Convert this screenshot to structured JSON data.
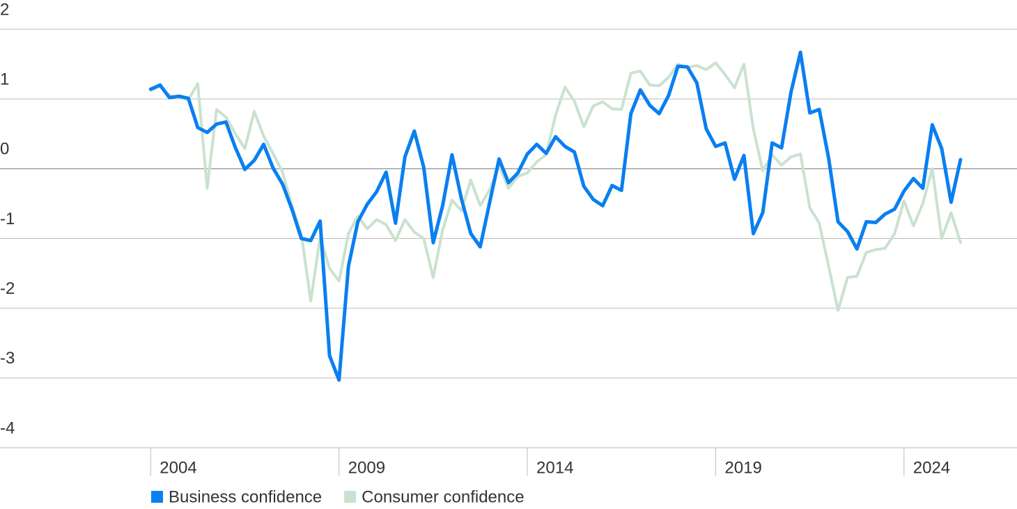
{
  "chart_data": {
    "type": "line",
    "x": [
      2004,
      2004.25,
      2004.5,
      2004.75,
      2005,
      2005.25,
      2005.5,
      2005.75,
      2006,
      2006.25,
      2006.5,
      2006.75,
      2007,
      2007.25,
      2007.5,
      2007.75,
      2008,
      2008.25,
      2008.5,
      2008.75,
      2009,
      2009.25,
      2009.5,
      2009.75,
      2010,
      2010.25,
      2010.5,
      2010.75,
      2011,
      2011.25,
      2011.5,
      2011.75,
      2012,
      2012.25,
      2012.5,
      2012.75,
      2013,
      2013.25,
      2013.5,
      2013.75,
      2014,
      2014.25,
      2014.5,
      2014.75,
      2015,
      2015.25,
      2015.5,
      2015.75,
      2016,
      2016.25,
      2016.5,
      2016.75,
      2017,
      2017.25,
      2017.5,
      2017.75,
      2018,
      2018.25,
      2018.5,
      2018.75,
      2019,
      2019.25,
      2019.5,
      2019.75,
      2020,
      2020.25,
      2020.5,
      2020.75,
      2021,
      2021.25,
      2021.5,
      2021.75,
      2022,
      2022.25,
      2022.5,
      2022.75,
      2023,
      2023.25,
      2023.5,
      2023.75,
      2024,
      2024.25,
      2024.5,
      2024.75,
      2025,
      2025.25,
      2025.5
    ],
    "series": [
      {
        "name": "Business confidence",
        "color": "#0a7ff0",
        "values": [
          1.14,
          1.2,
          1.02,
          1.04,
          1.01,
          0.59,
          0.52,
          0.64,
          0.67,
          0.3,
          -0.01,
          0.12,
          0.35,
          0.01,
          -0.22,
          -0.58,
          -1.0,
          -1.03,
          -0.75,
          -2.68,
          -3.03,
          -1.4,
          -0.76,
          -0.51,
          -0.33,
          -0.05,
          -0.78,
          0.17,
          0.54,
          0.02,
          -1.06,
          -0.53,
          0.2,
          -0.43,
          -0.93,
          -1.12,
          -0.48,
          0.14,
          -0.2,
          -0.06,
          0.21,
          0.35,
          0.22,
          0.46,
          0.32,
          0.24,
          -0.25,
          -0.44,
          -0.53,
          -0.24,
          -0.31,
          0.79,
          1.13,
          0.91,
          0.79,
          1.05,
          1.47,
          1.46,
          1.23,
          0.57,
          0.32,
          0.37,
          -0.15,
          0.19,
          -0.93,
          -0.63,
          0.37,
          0.3,
          1.1,
          1.67,
          0.8,
          0.85,
          0.15,
          -0.76,
          -0.9,
          -1.15,
          -0.76,
          -0.77,
          -0.65,
          -0.58,
          -0.32,
          -0.14,
          -0.28,
          0.63,
          0.29,
          -0.48,
          0.13
        ]
      },
      {
        "name": "Consumer confidence",
        "color": "#c9e2cf",
        "values": [
          1.12,
          1.18,
          1.05,
          1.03,
          0.99,
          1.22,
          -0.28,
          0.85,
          0.74,
          0.5,
          0.29,
          0.82,
          0.47,
          0.22,
          -0.05,
          -0.53,
          -0.93,
          -1.9,
          -0.98,
          -1.43,
          -1.61,
          -0.93,
          -0.68,
          -0.86,
          -0.73,
          -0.8,
          -1.03,
          -0.73,
          -0.91,
          -1.0,
          -1.56,
          -0.88,
          -0.45,
          -0.6,
          -0.16,
          -0.53,
          -0.3,
          0.05,
          -0.28,
          -0.11,
          -0.06,
          0.1,
          0.2,
          0.77,
          1.17,
          0.97,
          0.6,
          0.9,
          0.96,
          0.86,
          0.85,
          1.37,
          1.4,
          1.2,
          1.19,
          1.31,
          1.5,
          1.45,
          1.48,
          1.42,
          1.52,
          1.35,
          1.16,
          1.5,
          0.57,
          -0.03,
          0.2,
          0.05,
          0.17,
          0.21,
          -0.56,
          -0.78,
          -1.4,
          -2.03,
          -1.56,
          -1.54,
          -1.2,
          -1.16,
          -1.14,
          -0.93,
          -0.46,
          -0.82,
          -0.5,
          0.0,
          -1.0,
          -0.63,
          -1.06
        ]
      }
    ],
    "xlim": [
      2000,
      2027
    ],
    "xticks": [
      2004,
      2009,
      2014,
      2019,
      2024
    ],
    "ylim": [
      -4,
      2
    ],
    "yticks": [
      -4,
      -3,
      -2,
      -1,
      0,
      1,
      2
    ],
    "grid": true,
    "legend": "bottom-left"
  }
}
